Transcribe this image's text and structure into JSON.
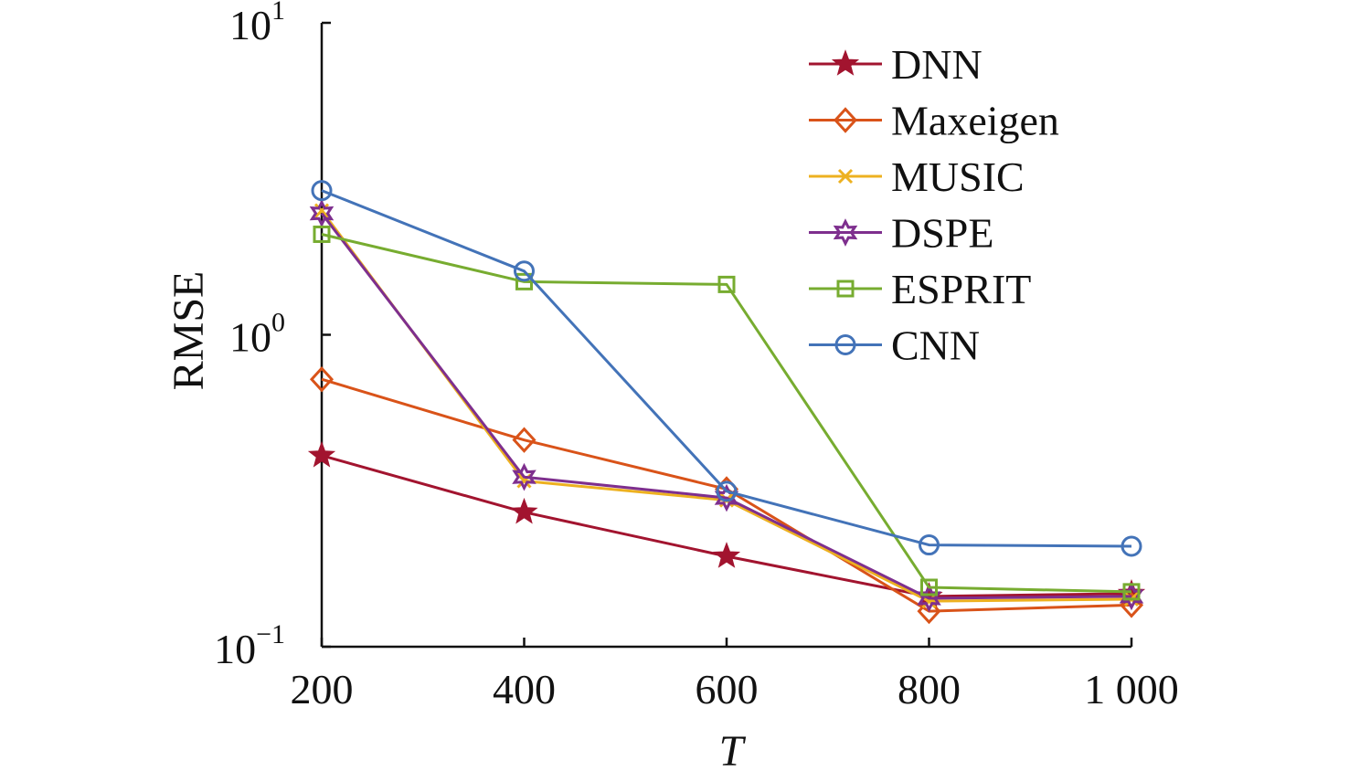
{
  "chart_data": {
    "type": "line",
    "xlabel": "T",
    "ylabel": "RMSE",
    "y_scale": "log",
    "ylim": [
      0.1,
      10
    ],
    "xlim": [
      200,
      1000
    ],
    "grid": false,
    "legend_position": "top-right",
    "x": [
      200,
      400,
      600,
      800,
      1000
    ],
    "x_tick_labels": [
      "200",
      "400",
      "600",
      "800",
      "1 000"
    ],
    "y_ticks": [
      {
        "value": 10,
        "base": "10",
        "exp": "1"
      },
      {
        "value": 1,
        "base": "10",
        "exp": "0"
      },
      {
        "value": 0.1,
        "base": "10",
        "exp": "−1"
      }
    ],
    "series": [
      {
        "name": "DNN",
        "marker": "star5",
        "color": "#A2142F",
        "values": [
          0.41,
          0.27,
          0.195,
          0.145,
          0.148
        ]
      },
      {
        "name": "Maxeigen",
        "marker": "diamond",
        "color": "#D95319",
        "values": [
          0.72,
          0.46,
          0.32,
          0.13,
          0.136
        ]
      },
      {
        "name": "MUSIC",
        "marker": "x",
        "color": "#EDB120",
        "values": [
          2.5,
          0.34,
          0.295,
          0.14,
          0.142
        ]
      },
      {
        "name": "DSPE",
        "marker": "star6",
        "color": "#7E2F8E",
        "values": [
          2.45,
          0.35,
          0.3,
          0.143,
          0.145
        ]
      },
      {
        "name": "ESPRIT",
        "marker": "square",
        "color": "#77AC30",
        "values": [
          2.1,
          1.48,
          1.45,
          0.155,
          0.15
        ]
      },
      {
        "name": "CNN",
        "marker": "circle",
        "color": "#4373B8",
        "values": [
          2.9,
          1.6,
          0.315,
          0.212,
          0.21
        ]
      }
    ]
  }
}
